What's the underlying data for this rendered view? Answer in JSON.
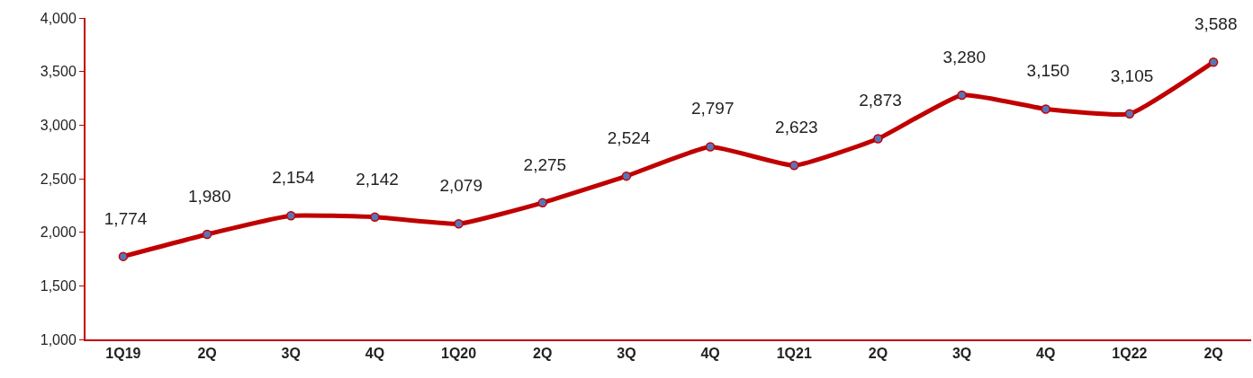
{
  "chart_data": {
    "type": "line",
    "categories": [
      "1Q19",
      "2Q",
      "3Q",
      "4Q",
      "1Q20",
      "2Q",
      "3Q",
      "4Q",
      "1Q21",
      "2Q",
      "3Q",
      "4Q",
      "1Q22",
      "2Q"
    ],
    "series": [
      {
        "color": "#c00000",
        "values": [
          1774,
          1980,
          2154,
          2142,
          2079,
          2275,
          2524,
          2797,
          2623,
          2873,
          3280,
          3150,
          3105,
          3588
        ],
        "value_labels": [
          "1,774",
          "1,980",
          "2,154",
          "2,142",
          "2,079",
          "2,275",
          "2,524",
          "2,797",
          "2,623",
          "2,873",
          "3,280",
          "3,150",
          "3,105",
          "3,588"
        ]
      }
    ],
    "ylim": [
      1000,
      4000
    ],
    "yticks": [
      {
        "value": 1000,
        "label": "1,000"
      },
      {
        "value": 1500,
        "label": "1,500"
      },
      {
        "value": 2000,
        "label": "2,000"
      },
      {
        "value": 2500,
        "label": "2,500"
      },
      {
        "value": 3000,
        "label": "3,000"
      },
      {
        "value": 3500,
        "label": "3,500"
      },
      {
        "value": 4000,
        "label": "4,000"
      }
    ],
    "grid": false,
    "marker": "circle",
    "line_style": "solid"
  }
}
